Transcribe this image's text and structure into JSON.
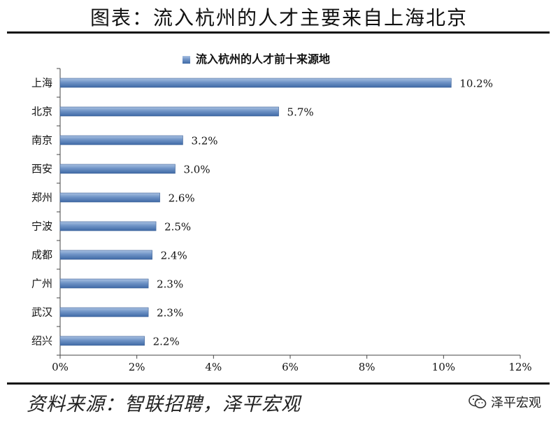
{
  "figure": {
    "title": "图表：流入杭州的人才主要来自上海北京",
    "source": "资料来源：智联招聘，泽平宏观",
    "brand": "泽平宏观",
    "brand_icon": "wechat-icon"
  },
  "colors": {
    "bar_top": "#a9c1e2",
    "bar_bottom": "#3f6aa6",
    "axis": "#444444",
    "text": "#111111"
  },
  "chart_data": {
    "type": "bar",
    "orientation": "horizontal",
    "title": "",
    "legend": {
      "label": "流入杭州的人才前十来源地",
      "placement": "top"
    },
    "categories": [
      "上海",
      "北京",
      "南京",
      "西安",
      "郑州",
      "宁波",
      "成都",
      "广州",
      "武汉",
      "绍兴"
    ],
    "series": [
      {
        "name": "流入杭州的人才前十来源地",
        "values": [
          10.2,
          5.7,
          3.2,
          3.0,
          2.6,
          2.5,
          2.4,
          2.3,
          2.3,
          2.2
        ],
        "data_labels": [
          "10.2%",
          "5.7%",
          "3.2%",
          "3.0%",
          "2.6%",
          "2.5%",
          "2.4%",
          "2.3%",
          "2.3%",
          "2.2%"
        ]
      }
    ],
    "xlim": [
      0,
      12
    ],
    "xticks": [
      "0%",
      "2%",
      "4%",
      "6%",
      "8%",
      "10%",
      "12%"
    ],
    "xlabel": "",
    "ylabel": "",
    "grid": false
  }
}
